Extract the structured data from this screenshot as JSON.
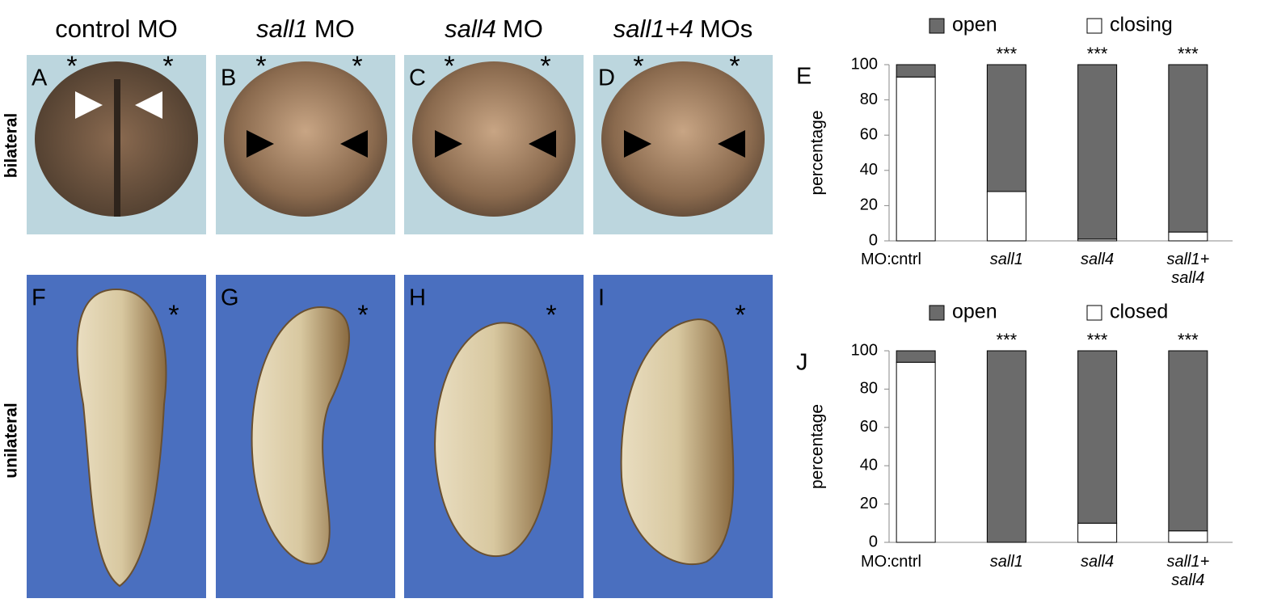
{
  "figure": {
    "column_titles": [
      {
        "text": "control MO"
      },
      {
        "gene": "sall1",
        "text": "MO"
      },
      {
        "gene": "sall4",
        "text": "MO"
      },
      {
        "gene": "sall1+4",
        "text": "MOs"
      }
    ],
    "row_labels": [
      "bilateral",
      "unilateral"
    ],
    "panels": [
      {
        "letter": "A",
        "marker": "*"
      },
      {
        "letter": "B",
        "marker": "*"
      },
      {
        "letter": "C",
        "marker": "*"
      },
      {
        "letter": "D",
        "marker": "*"
      },
      {
        "letter": "F",
        "marker": "*"
      },
      {
        "letter": "G",
        "marker": "*"
      },
      {
        "letter": "H",
        "marker": "*"
      },
      {
        "letter": "I",
        "marker": "*"
      }
    ]
  },
  "chart_data": [
    {
      "type": "bar",
      "stacked": true,
      "letter": "E",
      "y_label": "percentage",
      "x_prefix": "MO:",
      "categories": [
        "cntrl",
        "sall1",
        "sall4",
        "sall1+ sall4"
      ],
      "series": [
        {
          "name": "open",
          "color": "#6b6b6b",
          "values": [
            7,
            72,
            99,
            95
          ]
        },
        {
          "name": "closing",
          "color": "#ffffff",
          "values": [
            93,
            28,
            1,
            5
          ]
        }
      ],
      "annotations": [
        null,
        "***",
        "***",
        "***"
      ],
      "ylim": [
        0,
        100
      ],
      "yticks": [
        0,
        20,
        40,
        60,
        80,
        100
      ]
    },
    {
      "type": "bar",
      "stacked": true,
      "letter": "J",
      "y_label": "percentage",
      "x_prefix": "MO:",
      "categories": [
        "cntrl",
        "sall1",
        "sall4",
        "sall1+ sall4"
      ],
      "series": [
        {
          "name": "open",
          "color": "#6b6b6b",
          "values": [
            6,
            100,
            90,
            94
          ]
        },
        {
          "name": "closed",
          "color": "#ffffff",
          "values": [
            94,
            0,
            10,
            6
          ]
        }
      ],
      "annotations": [
        null,
        "***",
        "***",
        "***"
      ],
      "ylim": [
        0,
        100
      ],
      "yticks": [
        0,
        20,
        40,
        60,
        80,
        100
      ]
    }
  ]
}
